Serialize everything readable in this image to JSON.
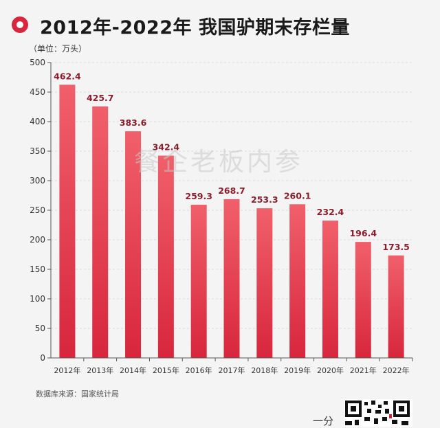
{
  "header": {
    "title": "2012年-2022年 我国驴期末存栏量"
  },
  "unit_label": "（单位：万头）",
  "watermark": "餐企老板内参",
  "source": "数据库来源：国家统计局",
  "footer_text": "一分",
  "colors": {
    "bar_top": "#f0606a",
    "bar_bottom": "#d7263d",
    "accent": "#d7263d",
    "label": "#8c1d2b"
  },
  "chart_data": {
    "type": "bar",
    "title": "2012年-2022年 我国驴期末存栏量",
    "ylabel": "单位：万头",
    "xlabel": "",
    "ylim": [
      0,
      500
    ],
    "yticks": [
      0,
      50,
      100,
      150,
      200,
      250,
      300,
      350,
      400,
      450,
      500
    ],
    "grid": true,
    "categories": [
      "2012年",
      "2013年",
      "2014年",
      "2015年",
      "2016年",
      "2017年",
      "2018年",
      "2019年",
      "2020年",
      "2021年",
      "2022年"
    ],
    "values": [
      462.4,
      425.7,
      383.6,
      342.4,
      259.3,
      268.7,
      253.3,
      260.1,
      232.4,
      196.4,
      173.5
    ],
    "labels": [
      "462.4",
      "425.7",
      "383.6",
      "342.4",
      "259.3",
      "268.7",
      "253.3",
      "260.1",
      "232.4",
      "196.4",
      "173.5"
    ]
  }
}
